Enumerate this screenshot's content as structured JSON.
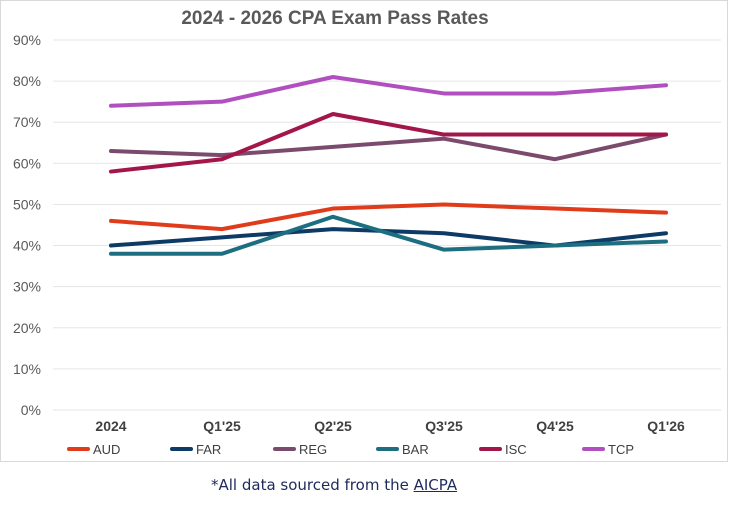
{
  "chart_data": {
    "type": "line",
    "title": "2024 - 2026 CPA Exam Pass Rates",
    "categories": [
      "2024",
      "Q1'25",
      "Q2'25",
      "Q3'25",
      "Q4'25",
      "Q1'26"
    ],
    "y_ticks": [
      "0%",
      "10%",
      "20%",
      "30%",
      "40%",
      "50%",
      "60%",
      "70%",
      "80%",
      "90%"
    ],
    "ylim": [
      0,
      90
    ],
    "grid": true,
    "legend_position": "bottom",
    "series": [
      {
        "name": "AUD",
        "color": "#e03c1c",
        "values": [
          46,
          44,
          49,
          50,
          49,
          48
        ]
      },
      {
        "name": "FAR",
        "color": "#0d3b66",
        "values": [
          40,
          42,
          44,
          43,
          40,
          43
        ]
      },
      {
        "name": "REG",
        "color": "#7b4b6e",
        "values": [
          63,
          62,
          64,
          66,
          61,
          67
        ]
      },
      {
        "name": "BAR",
        "color": "#1c6e80",
        "values": [
          38,
          38,
          47,
          39,
          40,
          41
        ]
      },
      {
        "name": "ISC",
        "color": "#a3164a",
        "values": [
          58,
          61,
          72,
          67,
          67,
          67
        ]
      },
      {
        "name": "TCP",
        "color": "#b24fc0",
        "values": [
          74,
          75,
          81,
          77,
          77,
          79
        ]
      }
    ]
  },
  "footer": {
    "note_prefix": "*All data sourced from the ",
    "link_text": "AICPA"
  }
}
